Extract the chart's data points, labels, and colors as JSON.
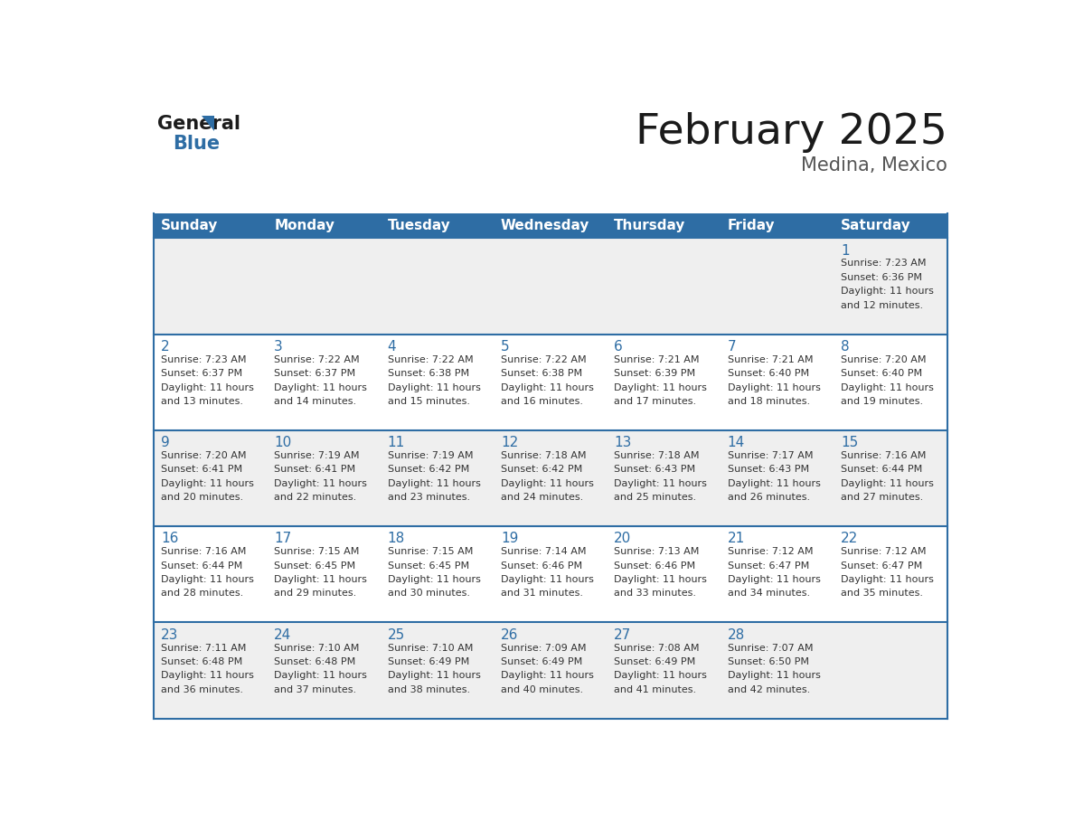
{
  "title": "February 2025",
  "subtitle": "Medina, Mexico",
  "header_bg": "#2E6DA4",
  "header_text_color": "#FFFFFF",
  "cell_bg_gray": "#EFEFEF",
  "cell_bg_white": "#FFFFFF",
  "row_line_color": "#2E6DA4",
  "day_headers": [
    "Sunday",
    "Monday",
    "Tuesday",
    "Wednesday",
    "Thursday",
    "Friday",
    "Saturday"
  ],
  "title_color": "#1a1a1a",
  "subtitle_color": "#555555",
  "day_num_color": "#2E6DA4",
  "cell_text_color": "#333333",
  "calendar": [
    [
      null,
      null,
      null,
      null,
      null,
      null,
      {
        "day": "1",
        "sunrise": "7:23 AM",
        "sunset": "6:36 PM",
        "daylight": "11 hours",
        "daylight2": "and 12 minutes."
      }
    ],
    [
      {
        "day": "2",
        "sunrise": "7:23 AM",
        "sunset": "6:37 PM",
        "daylight": "11 hours",
        "daylight2": "and 13 minutes."
      },
      {
        "day": "3",
        "sunrise": "7:22 AM",
        "sunset": "6:37 PM",
        "daylight": "11 hours",
        "daylight2": "and 14 minutes."
      },
      {
        "day": "4",
        "sunrise": "7:22 AM",
        "sunset": "6:38 PM",
        "daylight": "11 hours",
        "daylight2": "and 15 minutes."
      },
      {
        "day": "5",
        "sunrise": "7:22 AM",
        "sunset": "6:38 PM",
        "daylight": "11 hours",
        "daylight2": "and 16 minutes."
      },
      {
        "day": "6",
        "sunrise": "7:21 AM",
        "sunset": "6:39 PM",
        "daylight": "11 hours",
        "daylight2": "and 17 minutes."
      },
      {
        "day": "7",
        "sunrise": "7:21 AM",
        "sunset": "6:40 PM",
        "daylight": "11 hours",
        "daylight2": "and 18 minutes."
      },
      {
        "day": "8",
        "sunrise": "7:20 AM",
        "sunset": "6:40 PM",
        "daylight": "11 hours",
        "daylight2": "and 19 minutes."
      }
    ],
    [
      {
        "day": "9",
        "sunrise": "7:20 AM",
        "sunset": "6:41 PM",
        "daylight": "11 hours",
        "daylight2": "and 20 minutes."
      },
      {
        "day": "10",
        "sunrise": "7:19 AM",
        "sunset": "6:41 PM",
        "daylight": "11 hours",
        "daylight2": "and 22 minutes."
      },
      {
        "day": "11",
        "sunrise": "7:19 AM",
        "sunset": "6:42 PM",
        "daylight": "11 hours",
        "daylight2": "and 23 minutes."
      },
      {
        "day": "12",
        "sunrise": "7:18 AM",
        "sunset": "6:42 PM",
        "daylight": "11 hours",
        "daylight2": "and 24 minutes."
      },
      {
        "day": "13",
        "sunrise": "7:18 AM",
        "sunset": "6:43 PM",
        "daylight": "11 hours",
        "daylight2": "and 25 minutes."
      },
      {
        "day": "14",
        "sunrise": "7:17 AM",
        "sunset": "6:43 PM",
        "daylight": "11 hours",
        "daylight2": "and 26 minutes."
      },
      {
        "day": "15",
        "sunrise": "7:16 AM",
        "sunset": "6:44 PM",
        "daylight": "11 hours",
        "daylight2": "and 27 minutes."
      }
    ],
    [
      {
        "day": "16",
        "sunrise": "7:16 AM",
        "sunset": "6:44 PM",
        "daylight": "11 hours",
        "daylight2": "and 28 minutes."
      },
      {
        "day": "17",
        "sunrise": "7:15 AM",
        "sunset": "6:45 PM",
        "daylight": "11 hours",
        "daylight2": "and 29 minutes."
      },
      {
        "day": "18",
        "sunrise": "7:15 AM",
        "sunset": "6:45 PM",
        "daylight": "11 hours",
        "daylight2": "and 30 minutes."
      },
      {
        "day": "19",
        "sunrise": "7:14 AM",
        "sunset": "6:46 PM",
        "daylight": "11 hours",
        "daylight2": "and 31 minutes."
      },
      {
        "day": "20",
        "sunrise": "7:13 AM",
        "sunset": "6:46 PM",
        "daylight": "11 hours",
        "daylight2": "and 33 minutes."
      },
      {
        "day": "21",
        "sunrise": "7:12 AM",
        "sunset": "6:47 PM",
        "daylight": "11 hours",
        "daylight2": "and 34 minutes."
      },
      {
        "day": "22",
        "sunrise": "7:12 AM",
        "sunset": "6:47 PM",
        "daylight": "11 hours",
        "daylight2": "and 35 minutes."
      }
    ],
    [
      {
        "day": "23",
        "sunrise": "7:11 AM",
        "sunset": "6:48 PM",
        "daylight": "11 hours",
        "daylight2": "and 36 minutes."
      },
      {
        "day": "24",
        "sunrise": "7:10 AM",
        "sunset": "6:48 PM",
        "daylight": "11 hours",
        "daylight2": "and 37 minutes."
      },
      {
        "day": "25",
        "sunrise": "7:10 AM",
        "sunset": "6:49 PM",
        "daylight": "11 hours",
        "daylight2": "and 38 minutes."
      },
      {
        "day": "26",
        "sunrise": "7:09 AM",
        "sunset": "6:49 PM",
        "daylight": "11 hours",
        "daylight2": "and 40 minutes."
      },
      {
        "day": "27",
        "sunrise": "7:08 AM",
        "sunset": "6:49 PM",
        "daylight": "11 hours",
        "daylight2": "and 41 minutes."
      },
      {
        "day": "28",
        "sunrise": "7:07 AM",
        "sunset": "6:50 PM",
        "daylight": "11 hours",
        "daylight2": "and 42 minutes."
      },
      null
    ]
  ]
}
